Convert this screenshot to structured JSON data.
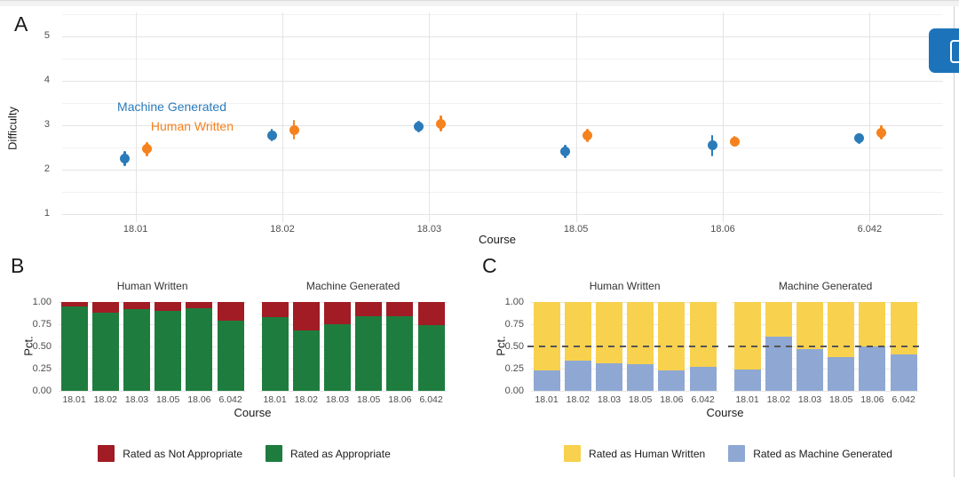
{
  "page": {
    "panel_labels": {
      "a": "A",
      "b": "B",
      "c": "C"
    }
  },
  "overlay_button": {
    "color": "#1d73b9"
  },
  "chart_data": [
    {
      "panel": "A",
      "type": "scatter",
      "subtype": "pointrange",
      "xlabel": "Course",
      "ylabel": "Difficulty",
      "ylim": [
        1,
        5
      ],
      "yticks": [
        5,
        4,
        3,
        2,
        1
      ],
      "grid": "on",
      "categories": [
        "18.01",
        "18.02",
        "18.03",
        "18.05",
        "18.06",
        "6.042"
      ],
      "series": [
        {
          "name": "Machine Generated",
          "color": "#2b7bb9",
          "means": [
            2.26,
            2.78,
            2.98,
            2.41,
            2.55,
            2.71
          ],
          "lower": [
            2.09,
            2.64,
            2.85,
            2.26,
            2.31,
            2.59
          ],
          "upper": [
            2.43,
            2.92,
            3.11,
            2.56,
            2.79,
            2.83
          ]
        },
        {
          "name": "Human Written",
          "color": "#f5821e",
          "means": [
            2.47,
            2.9,
            3.04,
            2.77,
            2.64,
            2.84
          ],
          "lower": [
            2.31,
            2.68,
            2.86,
            2.62,
            2.53,
            2.69
          ],
          "upper": [
            2.63,
            3.12,
            3.22,
            2.92,
            2.76,
            3.0
          ]
        }
      ],
      "annotations": [
        {
          "text": "Machine Generated",
          "color": "#2b7bb9"
        },
        {
          "text": "Human Written",
          "color": "#f5821e"
        }
      ]
    },
    {
      "panel": "B",
      "type": "bar",
      "stacked": true,
      "normalized": true,
      "xlabel": "Course",
      "ylabel": "Pct.",
      "yticks": [
        "1.00",
        "0.75",
        "0.50",
        "0.25",
        "0.00"
      ],
      "facets": [
        "Human Written",
        "Machine Generated"
      ],
      "categories": [
        "18.01",
        "18.02",
        "18.03",
        "18.05",
        "18.06",
        "6.042"
      ],
      "series": [
        {
          "name": "Rated as Appropriate",
          "color": "#1e7d3e",
          "stack": "bottom",
          "values": [
            [
              0.95,
              0.88,
              0.92,
              0.9,
              0.93,
              0.79
            ],
            [
              0.83,
              0.68,
              0.75,
              0.84,
              0.84,
              0.74
            ]
          ]
        },
        {
          "name": "Rated as Not Appropriate",
          "color": "#a11c24",
          "stack": "top",
          "values": [
            [
              0.05,
              0.12,
              0.08,
              0.1,
              0.07,
              0.21
            ],
            [
              0.17,
              0.32,
              0.25,
              0.16,
              0.16,
              0.26
            ]
          ]
        }
      ],
      "legend_items": [
        {
          "label": "Rated as Not Appropriate",
          "color": "#a11c24"
        },
        {
          "label": "Rated as Appropriate",
          "color": "#1e7d3e"
        }
      ]
    },
    {
      "panel": "C",
      "type": "bar",
      "stacked": true,
      "normalized": true,
      "refline": 0.5,
      "xlabel": "Course",
      "ylabel": "Pct.",
      "yticks": [
        "1.00",
        "0.75",
        "0.50",
        "0.25",
        "0.00"
      ],
      "facets": [
        "Human Written",
        "Machine Generated"
      ],
      "categories": [
        "18.01",
        "18.02",
        "18.03",
        "18.05",
        "18.06",
        "6.042"
      ],
      "series": [
        {
          "name": "Rated as Machine Generated",
          "color": "#8fa8d3",
          "stack": "bottom",
          "values": [
            [
              0.23,
              0.34,
              0.31,
              0.3,
              0.23,
              0.27
            ],
            [
              0.24,
              0.61,
              0.47,
              0.38,
              0.5,
              0.41
            ]
          ]
        },
        {
          "name": "Rated as Human Written",
          "color": "#f8d14e",
          "stack": "top",
          "values": [
            [
              0.77,
              0.66,
              0.69,
              0.7,
              0.77,
              0.73
            ],
            [
              0.76,
              0.39,
              0.53,
              0.62,
              0.5,
              0.59
            ]
          ]
        }
      ],
      "legend_items": [
        {
          "label": "Rated as Human Written",
          "color": "#f8d14e"
        },
        {
          "label": "Rated as Machine Generated",
          "color": "#8fa8d3"
        }
      ]
    }
  ]
}
